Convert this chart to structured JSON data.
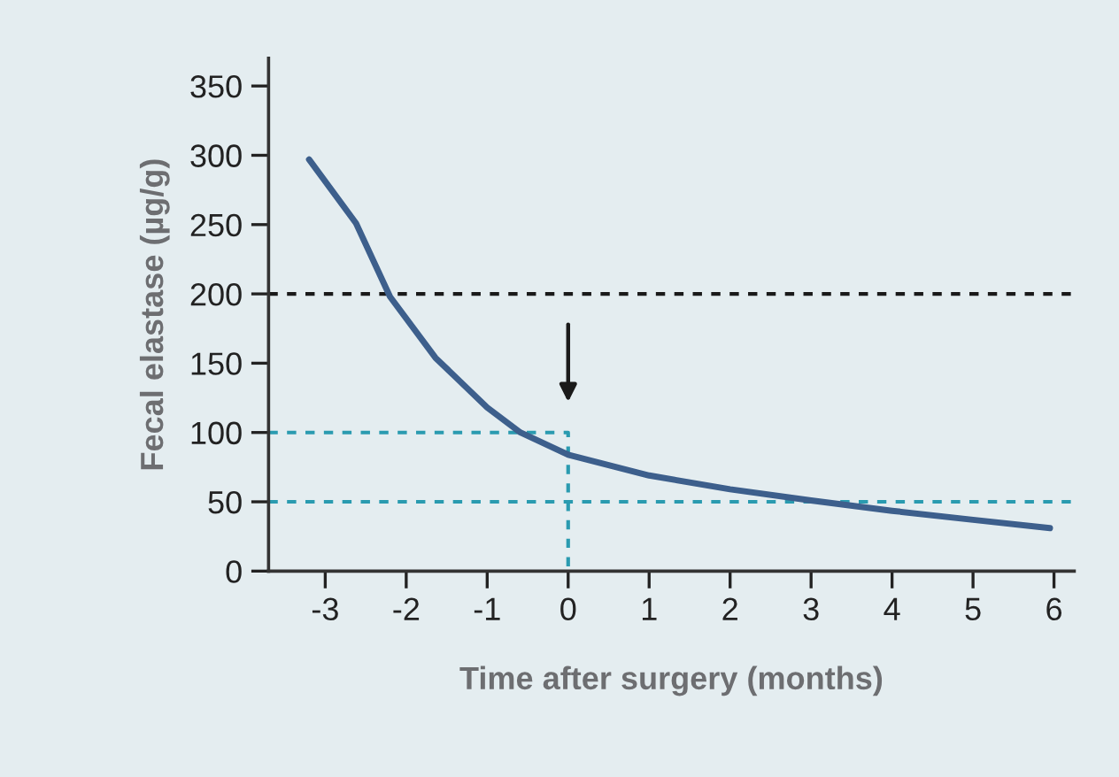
{
  "chart_data": {
    "type": "line",
    "xlabel": "Time after surgery (months)",
    "ylabel": "Fecal elastase (µg/g)",
    "xlim": [
      -3.7,
      6.25
    ],
    "xticks": [
      -3,
      -2,
      -1,
      0,
      1,
      2,
      3,
      4,
      5,
      6
    ],
    "ylim": [
      0,
      370
    ],
    "yticks": [
      0,
      50,
      100,
      150,
      200,
      250,
      300,
      350
    ],
    "series": [
      {
        "color": "#3d5f8c",
        "line_style": "solid",
        "x": [
          -3.2,
          -2.62,
          -2.2,
          -1.64,
          -1.0,
          -0.59,
          0,
          1,
          2,
          3,
          4,
          5,
          5.95
        ],
        "values": [
          297,
          251,
          198,
          154,
          118,
          100,
          84,
          69,
          59,
          51,
          43.5,
          37,
          31
        ]
      },
      {
        "color": "#2a9bb0",
        "line_style": "dashed",
        "x": [
          -3.7,
          0,
          0
        ],
        "values": [
          100,
          100,
          0
        ]
      }
    ],
    "ref_lines": [
      {
        "axis": "y",
        "value": 200,
        "color": "#1a1a1a",
        "line_style": "dashed"
      },
      {
        "axis": "y",
        "value": 50,
        "color": "#2a9bb0",
        "line_style": "dashed"
      }
    ],
    "grid": false,
    "legend": false,
    "marker": "none"
  }
}
